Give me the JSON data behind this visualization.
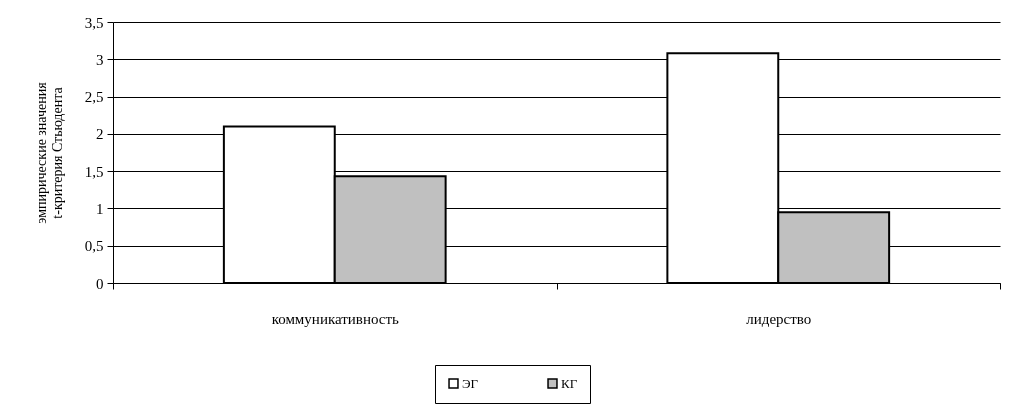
{
  "chart_data": {
    "type": "bar",
    "ylabel": "эмпирические значения\nt-критерия Стьюдента",
    "categories": [
      "коммуникативность",
      "лидерство"
    ],
    "series": [
      {
        "name": "ЭГ",
        "color": "#ffffff",
        "values": [
          2.1,
          3.08
        ]
      },
      {
        "name": "КГ",
        "color": "#c0c0c0",
        "values": [
          1.43,
          0.95
        ]
      }
    ],
    "ylim": [
      0,
      3.5
    ],
    "yticks": [
      0,
      {
        "value": 0.5,
        "label": "0,5"
      },
      1,
      {
        "value": 1.5,
        "label": "1,5"
      },
      2,
      {
        "value": 2.5,
        "label": "2,5"
      },
      3,
      {
        "value": 3.5,
        "label": "3,5"
      }
    ],
    "grid": "y",
    "legend": "bottom"
  }
}
